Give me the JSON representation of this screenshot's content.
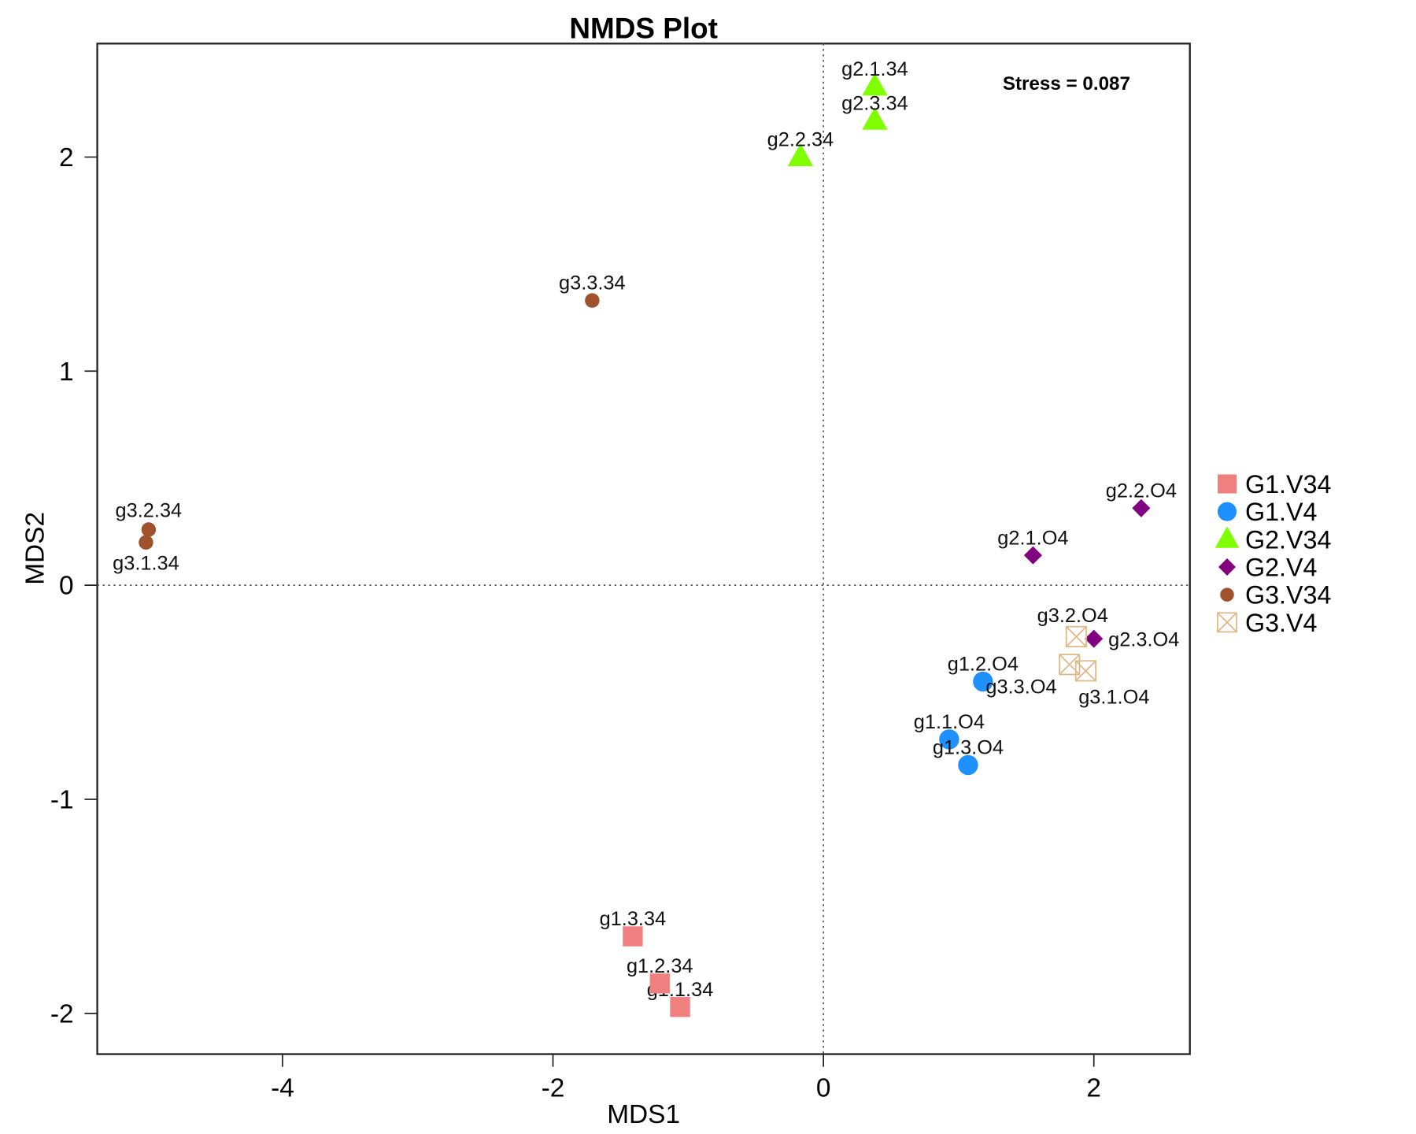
{
  "chart_data": {
    "type": "scatter",
    "title": "NMDS Plot",
    "xlabel": "MDS1",
    "ylabel": "MDS2",
    "xlim": [
      -5.37,
      2.71
    ],
    "ylim": [
      -2.19,
      2.53
    ],
    "xticks": [
      -4,
      -2,
      0,
      2
    ],
    "yticks": [
      -2,
      -1,
      0,
      1,
      2
    ],
    "grid": false,
    "reference_lines": {
      "x": 0,
      "y": 0,
      "style": "dotted"
    },
    "annotation": "Stress = 0.087",
    "legend_placement": "right",
    "series": [
      {
        "name": "G1.V34",
        "color": "#F08080",
        "shape": "square",
        "points": [
          {
            "label": "g1.1.34",
            "x": -1.06,
            "y": -1.97
          },
          {
            "label": "g1.2.34",
            "x": -1.21,
            "y": -1.86
          },
          {
            "label": "g1.3.34",
            "x": -1.41,
            "y": -1.64
          }
        ]
      },
      {
        "name": "G1.V4",
        "color": "#1E90FF",
        "shape": "circle",
        "points": [
          {
            "label": "g1.1.O4",
            "x": 0.93,
            "y": -0.72
          },
          {
            "label": "g1.2.O4",
            "x": 1.18,
            "y": -0.45
          },
          {
            "label": "g1.3.O4",
            "x": 1.07,
            "y": -0.84
          }
        ]
      },
      {
        "name": "G2.V34",
        "color": "#7FFF00",
        "shape": "triangle",
        "points": [
          {
            "label": "g2.1.34",
            "x": 0.38,
            "y": 2.33
          },
          {
            "label": "g2.2.34",
            "x": -0.17,
            "y": 2.0
          },
          {
            "label": "g2.3.34",
            "x": 0.38,
            "y": 2.17
          }
        ]
      },
      {
        "name": "G2.V4",
        "color": "#800080",
        "shape": "diamond",
        "points": [
          {
            "label": "g2.1.O4",
            "x": 1.55,
            "y": 0.14
          },
          {
            "label": "g2.2.O4",
            "x": 2.35,
            "y": 0.36
          },
          {
            "label": "g2.3.O4",
            "x": 2.0,
            "y": -0.25
          }
        ]
      },
      {
        "name": "G3.V34",
        "color": "#A0522D",
        "shape": "small-circle",
        "points": [
          {
            "label": "g3.1.34",
            "x": -5.01,
            "y": 0.2
          },
          {
            "label": "g3.2.34",
            "x": -4.99,
            "y": 0.26
          },
          {
            "label": "g3.3.34",
            "x": -1.71,
            "y": 1.33
          }
        ]
      },
      {
        "name": "G3.V4",
        "color": "#DEB887",
        "shape": "boxed-x",
        "points": [
          {
            "label": "g3.1.O4",
            "x": 1.94,
            "y": -0.4
          },
          {
            "label": "g3.2.O4",
            "x": 1.87,
            "y": -0.24
          },
          {
            "label": "g3.3.O4",
            "x": 1.82,
            "y": -0.37
          }
        ]
      }
    ]
  }
}
